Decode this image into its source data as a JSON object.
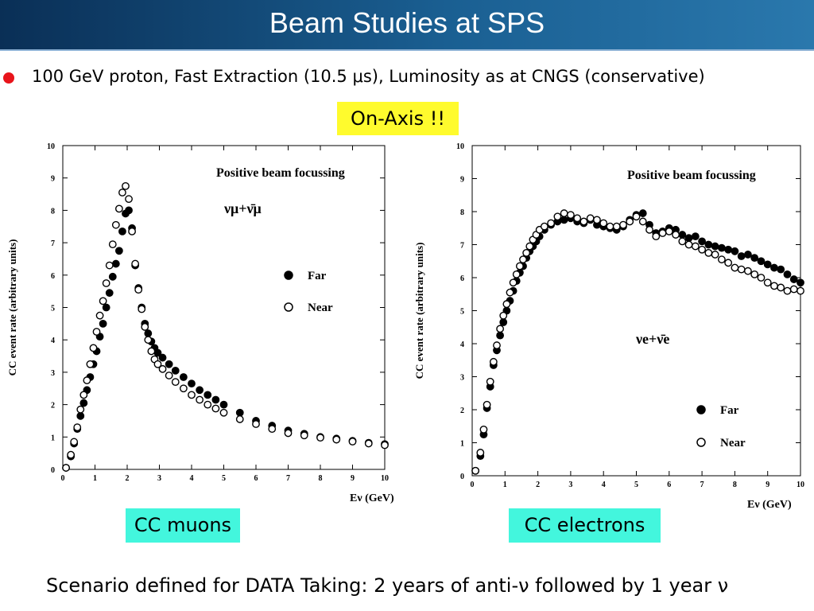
{
  "slide": {
    "title": "Beam Studies at SPS",
    "bullet": "100 GeV proton, Fast Extraction (10.5 μs), Luminosity as at CNGS (conservative)",
    "on_axis": "On-Axis !!",
    "label_left": "CC muons",
    "label_right": "CC electrons",
    "footer": "Scenario defined for DATA Taking: 2 years of anti-ν followed by 1 year ν"
  },
  "colors": {
    "title_bar": "#1a5f92",
    "bullet": "#e8141b",
    "highlight": "#fffb2d",
    "label_box": "#43f6dd"
  },
  "chart_data": [
    {
      "type": "scatter",
      "title": "Positive beam focussing",
      "annotation": "νμ+ν̄μ",
      "xlabel": "Eν (GeV)",
      "ylabel": "CC event rate  (arbitrary units)",
      "xlim": [
        0,
        10
      ],
      "ylim": [
        0,
        10
      ],
      "xticks": [
        0,
        1,
        2,
        3,
        4,
        5,
        6,
        7,
        8,
        9,
        10
      ],
      "yticks": [
        0,
        1,
        2,
        3,
        4,
        5,
        6,
        7,
        8,
        9,
        10
      ],
      "legend_position": "right",
      "series": [
        {
          "name": "Far",
          "marker": "filled",
          "x": [
            0.1,
            0.25,
            0.35,
            0.45,
            0.55,
            0.65,
            0.75,
            0.85,
            0.95,
            1.05,
            1.15,
            1.25,
            1.35,
            1.45,
            1.55,
            1.65,
            1.75,
            1.85,
            1.95,
            2.05,
            2.15,
            2.25,
            2.35,
            2.45,
            2.55,
            2.65,
            2.75,
            2.85,
            2.95,
            3.1,
            3.3,
            3.5,
            3.75,
            4.0,
            4.25,
            4.5,
            4.75,
            5.0,
            5.5,
            6.0,
            6.5,
            7.0,
            7.5,
            8.0,
            8.5,
            9.0,
            9.5,
            10.0
          ],
          "y": [
            0.05,
            0.4,
            0.8,
            1.25,
            1.65,
            2.05,
            2.45,
            2.85,
            3.25,
            3.65,
            4.1,
            4.5,
            5.0,
            5.45,
            5.95,
            6.35,
            6.75,
            7.35,
            7.9,
            8.0,
            7.45,
            6.3,
            5.6,
            5.0,
            4.5,
            4.2,
            3.95,
            3.75,
            3.6,
            3.45,
            3.25,
            3.05,
            2.85,
            2.65,
            2.45,
            2.3,
            2.15,
            2.0,
            1.75,
            1.5,
            1.35,
            1.2,
            1.1,
            1.0,
            0.95,
            0.88,
            0.82,
            0.78
          ]
        },
        {
          "name": "Near",
          "marker": "open",
          "x": [
            0.1,
            0.25,
            0.35,
            0.45,
            0.55,
            0.65,
            0.75,
            0.85,
            0.95,
            1.05,
            1.15,
            1.25,
            1.35,
            1.45,
            1.55,
            1.65,
            1.75,
            1.85,
            1.95,
            2.05,
            2.15,
            2.25,
            2.35,
            2.45,
            2.55,
            2.65,
            2.75,
            2.85,
            2.95,
            3.1,
            3.3,
            3.5,
            3.75,
            4.0,
            4.25,
            4.5,
            4.75,
            5.0,
            5.5,
            6.0,
            6.5,
            7.0,
            7.5,
            8.0,
            8.5,
            9.0,
            9.5,
            10.0
          ],
          "y": [
            0.05,
            0.45,
            0.85,
            1.3,
            1.85,
            2.3,
            2.75,
            3.25,
            3.75,
            4.25,
            4.75,
            5.2,
            5.75,
            6.3,
            6.95,
            7.55,
            8.05,
            8.55,
            8.75,
            8.35,
            7.35,
            6.35,
            5.55,
            4.95,
            4.4,
            4.0,
            3.65,
            3.4,
            3.25,
            3.1,
            2.9,
            2.7,
            2.5,
            2.3,
            2.15,
            2.0,
            1.88,
            1.75,
            1.55,
            1.4,
            1.25,
            1.12,
            1.05,
            0.98,
            0.92,
            0.86,
            0.8,
            0.75
          ]
        }
      ]
    },
    {
      "type": "scatter",
      "title": "Positive beam focussing",
      "annotation": "νe+ν̄e",
      "xlabel": "Eν (GeV)",
      "ylabel": "CC event rate (arbitrary units)",
      "xlim": [
        0,
        10
      ],
      "ylim": [
        0,
        10
      ],
      "xticks": [
        0,
        1,
        2,
        3,
        4,
        5,
        6,
        7,
        8,
        9,
        10
      ],
      "yticks": [
        0,
        1,
        2,
        3,
        4,
        5,
        6,
        7,
        8,
        9,
        10
      ],
      "legend_position": "bottom-right",
      "series": [
        {
          "name": "Far",
          "marker": "filled",
          "x": [
            0.1,
            0.25,
            0.35,
            0.45,
            0.55,
            0.65,
            0.75,
            0.85,
            0.95,
            1.05,
            1.15,
            1.25,
            1.35,
            1.45,
            1.55,
            1.65,
            1.75,
            1.85,
            1.95,
            2.05,
            2.2,
            2.4,
            2.6,
            2.8,
            3.0,
            3.2,
            3.4,
            3.6,
            3.8,
            4.0,
            4.2,
            4.4,
            4.6,
            4.8,
            5.0,
            5.2,
            5.4,
            5.6,
            5.8,
            6.0,
            6.2,
            6.4,
            6.6,
            6.8,
            7.0,
            7.2,
            7.4,
            7.6,
            7.8,
            8.0,
            8.2,
            8.4,
            8.6,
            8.8,
            9.0,
            9.2,
            9.4,
            9.6,
            9.8,
            10.0
          ],
          "y": [
            0.15,
            0.6,
            1.25,
            2.05,
            2.7,
            3.35,
            3.8,
            4.25,
            4.65,
            5.0,
            5.3,
            5.6,
            5.9,
            6.15,
            6.35,
            6.6,
            6.8,
            6.95,
            7.1,
            7.25,
            7.45,
            7.6,
            7.7,
            7.75,
            7.8,
            7.7,
            7.65,
            7.75,
            7.6,
            7.55,
            7.5,
            7.45,
            7.55,
            7.75,
            7.9,
            7.95,
            7.6,
            7.35,
            7.4,
            7.5,
            7.45,
            7.3,
            7.2,
            7.25,
            7.1,
            7.0,
            6.95,
            6.9,
            6.85,
            6.8,
            6.65,
            6.7,
            6.6,
            6.5,
            6.4,
            6.3,
            6.25,
            6.1,
            5.95,
            5.85
          ]
        },
        {
          "name": "Near",
          "marker": "open",
          "x": [
            0.1,
            0.25,
            0.35,
            0.45,
            0.55,
            0.65,
            0.75,
            0.85,
            0.95,
            1.05,
            1.15,
            1.25,
            1.35,
            1.45,
            1.55,
            1.65,
            1.75,
            1.85,
            1.95,
            2.05,
            2.2,
            2.4,
            2.6,
            2.8,
            3.0,
            3.2,
            3.4,
            3.6,
            3.8,
            4.0,
            4.2,
            4.4,
            4.6,
            4.8,
            5.0,
            5.2,
            5.4,
            5.6,
            5.8,
            6.0,
            6.2,
            6.4,
            6.6,
            6.8,
            7.0,
            7.2,
            7.4,
            7.6,
            7.8,
            8.0,
            8.2,
            8.4,
            8.6,
            8.8,
            9.0,
            9.2,
            9.4,
            9.6,
            9.8,
            10.0
          ],
          "y": [
            0.15,
            0.7,
            1.4,
            2.15,
            2.85,
            3.45,
            3.95,
            4.45,
            4.85,
            5.2,
            5.55,
            5.85,
            6.1,
            6.35,
            6.55,
            6.75,
            6.95,
            7.15,
            7.3,
            7.45,
            7.55,
            7.65,
            7.85,
            7.95,
            7.9,
            7.8,
            7.7,
            7.8,
            7.75,
            7.65,
            7.55,
            7.55,
            7.6,
            7.7,
            7.85,
            7.7,
            7.45,
            7.25,
            7.35,
            7.4,
            7.3,
            7.1,
            7.0,
            6.95,
            6.85,
            6.75,
            6.7,
            6.55,
            6.45,
            6.3,
            6.25,
            6.2,
            6.1,
            6.0,
            5.85,
            5.75,
            5.7,
            5.6,
            5.65,
            5.6
          ]
        }
      ]
    }
  ]
}
